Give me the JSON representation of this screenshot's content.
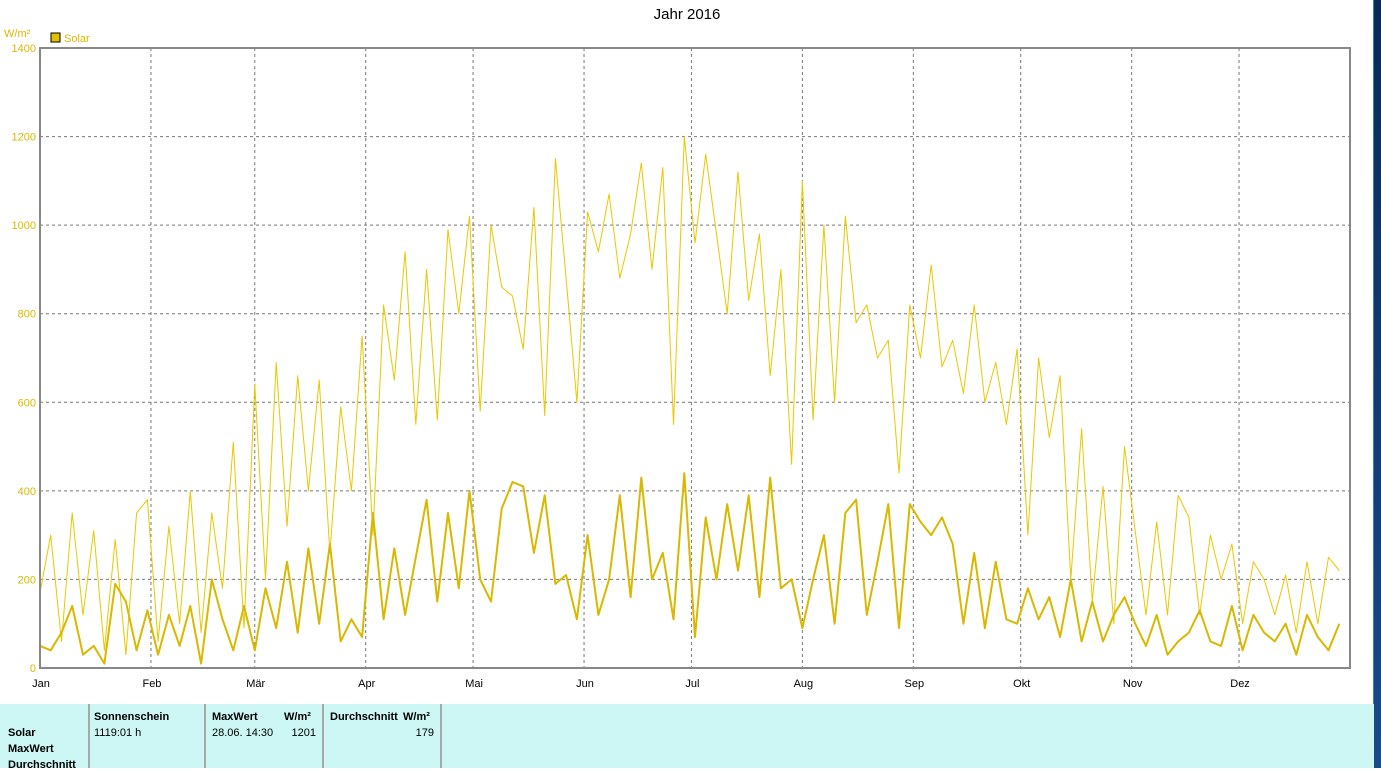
{
  "title": "Jahr 2016",
  "chart_data": {
    "type": "line",
    "title": "Jahr 2016",
    "ylabel": "W/m²",
    "ylim": [
      0,
      1400
    ],
    "yticks": [
      0,
      200,
      400,
      600,
      800,
      1000,
      1200,
      1400
    ],
    "xlim_days": [
      0,
      366
    ],
    "month_labels": [
      "Jan",
      "Feb",
      "Mär",
      "Apr",
      "Mai",
      "Jun",
      "Jul",
      "Aug",
      "Sep",
      "Okt",
      "Nov",
      "Dez"
    ],
    "month_start_days": [
      0,
      31,
      60,
      91,
      121,
      152,
      182,
      213,
      244,
      274,
      305,
      335
    ],
    "legend": [
      {
        "label": "Solar",
        "color": "#e0c000"
      }
    ],
    "legend_placement": "top-left",
    "grid": true,
    "x_step_days": 3,
    "series": [
      {
        "name": "Solar MaxWert (daily max)",
        "color": "#e8c800",
        "width": 1,
        "values": [
          170,
          300,
          60,
          350,
          120,
          310,
          40,
          290,
          30,
          350,
          380,
          60,
          320,
          100,
          400,
          80,
          350,
          180,
          510,
          90,
          640,
          200,
          690,
          320,
          660,
          400,
          650,
          260,
          590,
          400,
          750,
          300,
          820,
          650,
          940,
          550,
          900,
          560,
          990,
          800,
          1020,
          580,
          1000,
          860,
          840,
          720,
          1040,
          570,
          1150,
          880,
          600,
          1030,
          940,
          1070,
          880,
          980,
          1140,
          900,
          1130,
          550,
          1200,
          960,
          1160,
          980,
          800,
          1120,
          830,
          980,
          660,
          900,
          460,
          1100,
          560,
          1000,
          600,
          1020,
          780,
          820,
          700,
          740,
          440,
          820,
          700,
          910,
          680,
          740,
          620,
          820,
          600,
          690,
          550,
          720,
          300,
          700,
          520,
          660,
          200,
          540,
          150,
          410,
          100,
          500,
          310,
          120,
          330,
          120,
          390,
          340,
          120,
          300,
          200,
          280,
          100,
          240,
          200,
          120,
          210,
          80,
          240,
          100,
          250,
          220
        ]
      },
      {
        "name": "Solar Durchschnitt (daily mean)",
        "color": "#d8b800",
        "width": 2,
        "values": [
          50,
          40,
          80,
          140,
          30,
          50,
          10,
          190,
          150,
          40,
          130,
          30,
          120,
          50,
          140,
          10,
          200,
          110,
          40,
          140,
          40,
          180,
          90,
          240,
          80,
          270,
          100,
          280,
          60,
          110,
          70,
          350,
          110,
          270,
          120,
          250,
          380,
          150,
          350,
          180,
          400,
          200,
          150,
          360,
          420,
          410,
          260,
          390,
          190,
          210,
          110,
          300,
          120,
          200,
          390,
          160,
          430,
          200,
          260,
          110,
          440,
          70,
          340,
          200,
          370,
          220,
          390,
          160,
          430,
          180,
          200,
          90,
          200,
          300,
          100,
          350,
          380,
          120,
          240,
          370,
          90,
          370,
          330,
          300,
          340,
          280,
          100,
          260,
          90,
          240,
          110,
          100,
          180,
          110,
          160,
          70,
          200,
          60,
          150,
          60,
          120,
          160,
          100,
          50,
          120,
          30,
          60,
          80,
          130,
          60,
          50,
          140,
          40,
          120,
          80,
          60,
          100,
          30,
          120,
          70,
          40,
          100
        ]
      }
    ]
  },
  "panel": {
    "row_labels": [
      "Solar",
      "MaxWert",
      "Durchschnitt"
    ],
    "sonnenschein": {
      "header": "Sonnenschein",
      "value": "1119:01 h"
    },
    "maxwert": {
      "header": "MaxWert",
      "unit": "W/m²",
      "date": "28.06.  14:30",
      "value": "1201"
    },
    "durchschnitt": {
      "header": "Durchschnitt",
      "unit": "W/m²",
      "value": "179"
    }
  }
}
